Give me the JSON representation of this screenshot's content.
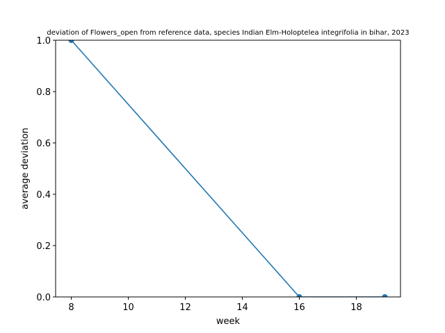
{
  "chart_data": {
    "type": "line",
    "title": "deviation of Flowers_open from reference data, species Indian Elm-Holoptelea integrifolia in bihar, 2023",
    "xlabel": "week",
    "ylabel": "average deviation",
    "xlim": [
      7.45,
      19.55
    ],
    "ylim": [
      0,
      1
    ],
    "x_ticks": [
      8,
      10,
      12,
      14,
      16,
      18
    ],
    "y_ticks": [
      0.0,
      0.2,
      0.4,
      0.6,
      0.8,
      1.0
    ],
    "grid": false,
    "series": [
      {
        "x": [
          8,
          16,
          19
        ],
        "y": [
          1.0,
          0.0,
          0.0
        ],
        "color": "#1f77b4",
        "marker": "circle"
      }
    ]
  }
}
